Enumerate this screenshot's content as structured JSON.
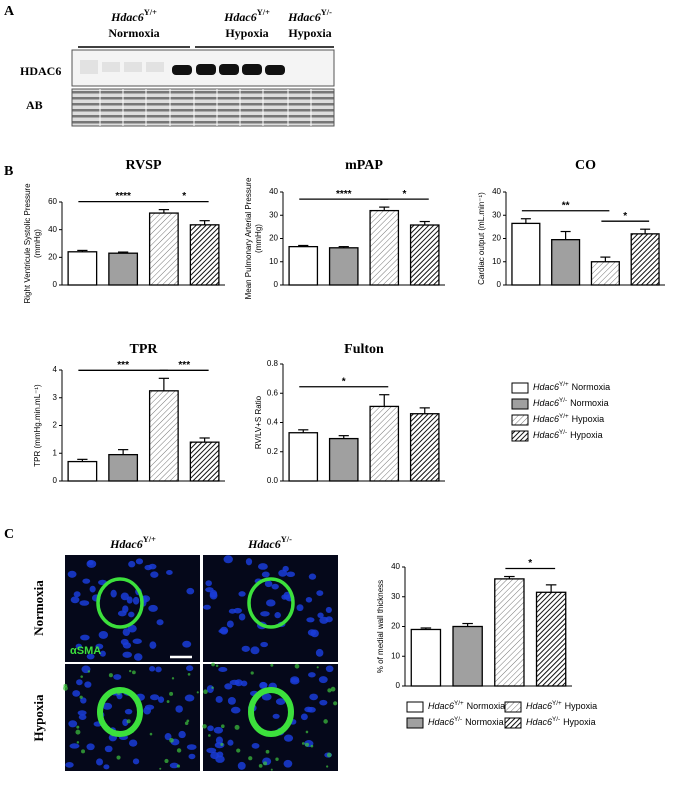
{
  "panel_a": {
    "label": "A",
    "groups": [
      {
        "gene": "Hdac6",
        "genotype": "Y/+",
        "condition": "Normoxia"
      },
      {
        "gene": "Hdac6",
        "genotype": "Y/+",
        "condition": "Hypoxia"
      },
      {
        "gene": "Hdac6",
        "genotype": "Y/-",
        "condition": "Hypoxia"
      }
    ],
    "rows": [
      "HDAC6",
      "AB"
    ]
  },
  "panel_b": {
    "label": "B"
  },
  "legend": {
    "entries": [
      {
        "gene": "Hdac6",
        "genotype": "Y/+",
        "condition": "Normoxia",
        "style": "white"
      },
      {
        "gene": "Hdac6",
        "genotype": "Y/-",
        "condition": "Normoxia",
        "style": "gray"
      },
      {
        "gene": "Hdac6",
        "genotype": "Y/+",
        "condition": "Hypoxia",
        "style": "hatch-light"
      },
      {
        "gene": "Hdac6",
        "genotype": "Y/-",
        "condition": "Hypoxia",
        "style": "hatch-dark"
      }
    ]
  },
  "chart_data": [
    {
      "type": "bar",
      "title": "RVSP",
      "ylabel": [
        "Right Ventricule Systolic Pressure",
        "(mmHg)"
      ],
      "categories": [
        null,
        null,
        null,
        null
      ],
      "values": [
        24,
        23,
        52,
        43.5
      ],
      "errors": [
        1,
        0.8,
        2.5,
        3
      ],
      "ylim": [
        0,
        60
      ],
      "yticks": [
        0,
        20,
        40,
        60
      ],
      "annotations": [
        {
          "text": "****",
          "from": 0,
          "to": 2
        },
        {
          "text": "*",
          "from": 2,
          "to": 3
        }
      ]
    },
    {
      "type": "bar",
      "title": "mPAP",
      "ylabel": [
        "Mean Pulmonary Arterial Pressure",
        "(mmHg)"
      ],
      "categories": [
        null,
        null,
        null,
        null
      ],
      "values": [
        16.5,
        16,
        32,
        25.8
      ],
      "errors": [
        0.5,
        0.5,
        1.5,
        1.5
      ],
      "ylim": [
        0,
        40
      ],
      "yticks": [
        0,
        10,
        20,
        30,
        40
      ],
      "annotations": [
        {
          "text": "****",
          "from": 0,
          "to": 2
        },
        {
          "text": "*",
          "from": 2,
          "to": 3
        }
      ]
    },
    {
      "type": "bar",
      "title": "CO",
      "ylabel": [
        "Cardiac output (mL.min⁻¹)"
      ],
      "categories": [
        null,
        null,
        null,
        null
      ],
      "values": [
        26.5,
        19.5,
        10,
        22
      ],
      "errors": [
        2,
        3.5,
        2,
        2
      ],
      "ylim": [
        0,
        40
      ],
      "yticks": [
        0,
        10,
        20,
        30,
        40
      ],
      "annotations": [
        {
          "text": "**",
          "from": 0,
          "to": 2
        },
        {
          "text": "*",
          "from": 2,
          "to": 3
        }
      ]
    },
    {
      "type": "bar",
      "title": "TPR",
      "ylabel": [
        "TPR (mmHg.min.mL⁻¹)"
      ],
      "categories": [
        null,
        null,
        null,
        null
      ],
      "values": [
        0.7,
        0.95,
        3.25,
        1.4
      ],
      "errors": [
        0.08,
        0.18,
        0.45,
        0.15
      ],
      "ylim": [
        0,
        4
      ],
      "yticks": [
        0,
        1,
        2,
        3,
        4
      ],
      "annotations": [
        {
          "text": "***",
          "from": 0,
          "to": 2
        },
        {
          "text": "***",
          "from": 2,
          "to": 3
        }
      ]
    },
    {
      "type": "bar",
      "title": "Fulton",
      "ylabel": [
        "RV/LV+S Ratio"
      ],
      "categories": [
        null,
        null,
        null,
        null
      ],
      "values": [
        0.33,
        0.29,
        0.51,
        0.46
      ],
      "errors": [
        0.02,
        0.02,
        0.08,
        0.04
      ],
      "ylim": [
        0,
        0.8
      ],
      "yticks": [
        {
          "value": 0,
          "label": "0.0"
        },
        0.2,
        0.4,
        0.6,
        0.8
      ],
      "annotations": [
        {
          "text": "*",
          "from": 0,
          "to": 2
        }
      ]
    },
    {
      "type": "bar",
      "ylabel": [
        "% of medial wall thickness"
      ],
      "categories": [
        null,
        null,
        null,
        null
      ],
      "values": [
        19,
        20,
        36,
        31.5
      ],
      "errors": [
        0.5,
        1,
        0.8,
        2.5
      ],
      "ylim": [
        0,
        40
      ],
      "yticks": [
        0,
        10,
        20,
        30,
        40
      ],
      "annotations": [
        {
          "text": "*",
          "from": 2,
          "to": 3
        }
      ]
    }
  ],
  "panel_c": {
    "label": "C",
    "columns": [
      {
        "gene": "Hdac6",
        "genotype": "Y/+"
      },
      {
        "gene": "Hdac6",
        "genotype": "Y/-"
      }
    ],
    "rows": [
      "Normoxia",
      "Hypoxia"
    ],
    "stain": "αSMA"
  }
}
